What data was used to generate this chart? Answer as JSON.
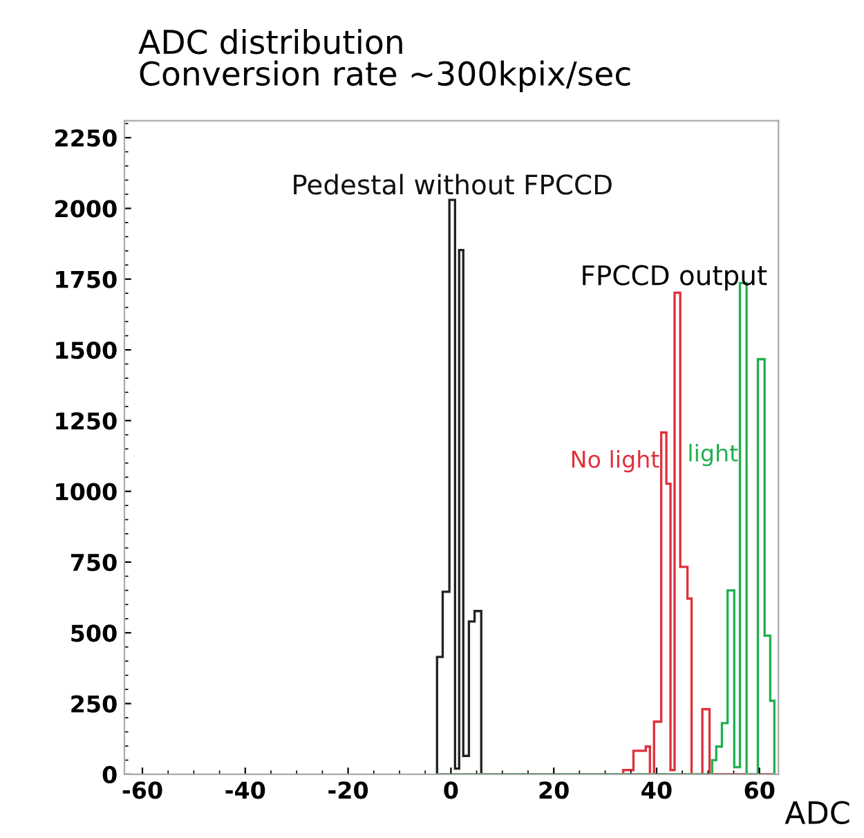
{
  "chart_data": {
    "type": "histogram",
    "title": "ADC distribution\nConversion rate ~300kpix/sec",
    "xlabel": "ADC",
    "bins": [
      -2.7,
      -1.6,
      -0.3,
      0.8,
      1.6,
      2.4,
      3.5,
      4.6,
      5.9,
      33.5,
      35.5,
      37.9,
      38.7,
      39.5,
      40.9,
      41.9,
      42.7,
      43.5,
      44.6,
      46.0,
      46.8,
      48.9,
      50.3,
      50.8,
      51.6,
      52.7,
      53.8,
      55.1,
      56.2,
      57.5,
      59.7,
      61.0,
      62.1,
      62.9
    ],
    "series": [
      {
        "name": "Pedestal without FPCCD",
        "color": "#222222",
        "values": [
          415,
          645,
          2030,
          20,
          1853,
          65,
          540,
          577,
          0,
          0,
          0,
          0,
          0,
          0,
          0,
          0,
          0,
          0,
          0,
          0,
          0,
          0,
          0,
          0,
          0,
          0,
          0,
          0,
          0,
          0,
          0,
          0,
          0
        ]
      },
      {
        "name": "No light",
        "color": "#e0303c",
        "values": [
          0,
          0,
          0,
          0,
          0,
          0,
          0,
          0,
          0,
          15,
          83,
          98,
          0,
          186,
          1208,
          1027,
          15,
          1702,
          733,
          621,
          0,
          230,
          0,
          0,
          0,
          0,
          0,
          0,
          0,
          0,
          0,
          0,
          0
        ]
      },
      {
        "name": "light",
        "color": "#20b050",
        "values": [
          0,
          0,
          0,
          0,
          0,
          0,
          0,
          0,
          0,
          0,
          0,
          0,
          0,
          0,
          0,
          0,
          0,
          0,
          0,
          0,
          0,
          0,
          0,
          50,
          98,
          181,
          650,
          25,
          1736,
          0,
          1467,
          490,
          260
        ]
      }
    ],
    "annotations": [
      "FPCCD output"
    ],
    "xlim": [
      -63.5,
      63.7
    ],
    "ylim": [
      0,
      2310
    ],
    "xticks": [
      -60,
      -40,
      -20,
      0,
      20,
      40,
      60
    ],
    "yticks": [
      0,
      250,
      500,
      750,
      1000,
      1250,
      1500,
      1750,
      2000,
      2250
    ],
    "grid": false,
    "legend": false
  }
}
